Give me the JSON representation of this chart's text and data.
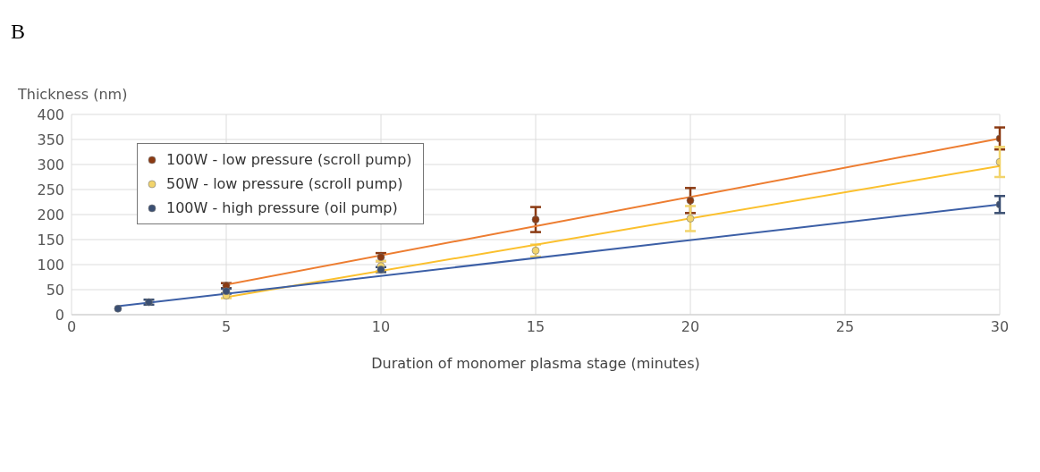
{
  "chart_data": {
    "type": "scatter",
    "annotations": [
      "B"
    ],
    "ylabel": "Thickness (nm)",
    "xlabel": "Duration of monomer plasma stage (minutes)",
    "xlim": [
      0,
      30
    ],
    "xticks": [
      0,
      5,
      10,
      15,
      20,
      25,
      30
    ],
    "ylim": [
      0,
      400
    ],
    "yticks": [
      0,
      50,
      100,
      150,
      200,
      250,
      300,
      350,
      400
    ],
    "grid": true,
    "legend": "top left",
    "marker": "circle",
    "series": [
      {
        "name": "100W - low pressure (scroll pump)",
        "color": "#8b3a12",
        "x": [
          5,
          10,
          15,
          20,
          30
        ],
        "values": [
          58,
          115,
          190,
          228,
          352
        ],
        "errors": [
          5,
          8,
          25,
          25,
          22
        ]
      },
      {
        "name": "50W - low pressure (scroll pump)",
        "color": "#f2d46c",
        "x": [
          5,
          10,
          15,
          20,
          30
        ],
        "values": [
          38,
          97,
          128,
          192,
          305
        ],
        "errors": [
          5,
          10,
          12,
          25,
          30
        ]
      },
      {
        "name": "100W - high pressure (oil pump)",
        "color": "#3b4f72",
        "x": [
          1.5,
          2.5,
          5,
          10,
          30
        ],
        "values": [
          12,
          25,
          47,
          90,
          220
        ],
        "errors": [
          null,
          5,
          5,
          5,
          17
        ]
      },
      {
        "type": "line",
        "color": "#ed7d31",
        "x": [
          5,
          30
        ],
        "values": [
          60,
          352
        ],
        "marker": "none"
      },
      {
        "type": "line",
        "color": "#fbc02d",
        "x": [
          5,
          30
        ],
        "values": [
          35,
          297
        ],
        "marker": "none"
      },
      {
        "type": "line",
        "color": "#3c5fa6",
        "x": [
          1.5,
          30
        ],
        "values": [
          17,
          220
        ],
        "marker": "none"
      }
    ]
  }
}
